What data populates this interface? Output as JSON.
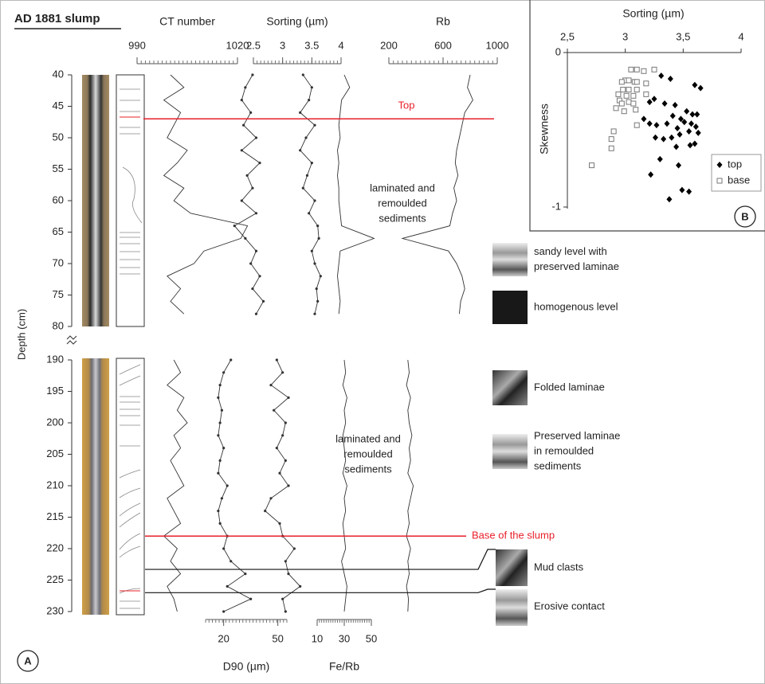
{
  "chart_data": [
    {
      "type": "depth-log",
      "panel": "A",
      "title": "AD 1881 slump",
      "ylabel": "Depth (cm)",
      "color": "#333333",
      "sections": [
        {
          "ylim": [
            40,
            80
          ],
          "yticks": [
            40,
            45,
            50,
            55,
            60,
            65,
            70,
            75,
            80
          ],
          "depth": [
            40,
            42,
            44,
            46,
            48,
            50,
            52,
            54,
            56,
            58,
            60,
            62,
            64,
            66,
            68,
            70,
            72,
            74,
            76,
            78
          ]
        },
        {
          "ylim": [
            190,
            230
          ],
          "yticks": [
            190,
            195,
            200,
            205,
            210,
            215,
            220,
            225,
            230
          ],
          "depth": [
            190,
            192,
            194,
            196,
            198,
            200,
            202,
            204,
            206,
            208,
            210,
            212,
            214,
            216,
            218,
            220,
            222,
            224,
            226,
            228,
            230
          ]
        }
      ],
      "tracks": [
        {
          "name": "CT number",
          "axis": "top",
          "xlim": [
            990,
            1020
          ],
          "xticks": [
            990,
            1020
          ],
          "points": false,
          "values": [
            [
              1000,
              1004,
              998,
              1003,
              1001,
              999,
              1005,
              1002,
              998,
              1004,
              1001,
              1006,
              1023,
              1021,
              1010,
              1007,
              999,
              1003,
              1000,
              1004
            ],
            [
              1001,
              1003,
              999,
              1004,
              1002,
              1005,
              1001,
              1003,
              1000,
              1002,
              1004,
              999,
              1001,
              1003,
              998,
              1002,
              1000,
              1003,
              999,
              1001,
              1002
            ]
          ]
        },
        {
          "name": "Sorting (µm)",
          "axis": "top",
          "xlim": [
            2.5,
            4
          ],
          "xticks": [
            2.5,
            3,
            3.5,
            4
          ],
          "points": true,
          "values": [
            [
              3.35,
              3.5,
              3.45,
              3.3,
              3.55,
              3.4,
              3.3,
              3.5,
              3.42,
              3.35,
              3.55,
              3.45,
              3.6,
              3.62,
              3.5,
              3.55,
              3.65,
              3.58,
              3.6,
              3.55
            ],
            [
              2.9,
              3.0,
              2.8,
              3.1,
              2.85,
              3.05,
              3.0,
              2.9,
              3.05,
              2.95,
              3.1,
              2.8,
              2.7,
              2.95,
              3.0,
              3.2,
              3.05,
              3.1,
              3.3,
              3.0,
              3.05
            ]
          ]
        },
        {
          "name": "Rb",
          "axis": "top",
          "xlim": [
            200,
            1000
          ],
          "xticks": [
            200,
            600,
            1000
          ],
          "points": false,
          "values": [
            [
              800,
              780,
              820,
              760,
              740,
              720,
              700,
              690,
              710,
              680,
              700,
              670,
              650,
              300,
              640,
              700,
              740,
              760,
              730,
              720
            ],
            [
              340,
              350,
              330,
              360,
              340,
              350,
              370,
              350,
              360,
              340,
              380,
              360,
              340,
              350,
              330,
              360,
              340,
              350,
              330,
              345,
              340
            ]
          ]
        },
        {
          "name": "D90 (µm)",
          "axis": "bottom",
          "xlim": [
            10,
            55
          ],
          "xticks": [
            20,
            50
          ],
          "points": true,
          "values": [
            [
              36,
              32,
              30,
              35,
              31,
              38,
              30,
              40,
              33,
              36,
              30,
              38,
              26,
              32,
              38,
              35,
              40,
              36,
              42,
              38
            ],
            [
              24,
              20,
              18,
              17,
              19,
              18,
              17,
              20,
              18,
              17,
              22,
              19,
              17,
              18,
              22,
              20,
              24,
              32,
              22,
              35,
              20
            ]
          ]
        },
        {
          "name": "Fe/Rb",
          "axis": "bottom",
          "xlim": [
            10,
            50
          ],
          "xticks": [
            10,
            30,
            50
          ],
          "points": false,
          "values": [
            [
              30,
              34,
              28,
              27,
              26,
              27,
              25,
              26,
              25,
              26,
              26,
              27,
              28,
              52,
              27,
              26,
              25,
              26,
              27,
              26
            ],
            [
              30,
              31,
              29,
              32,
              30,
              31,
              29,
              30,
              31,
              29,
              32,
              30,
              31,
              29,
              30,
              31,
              28,
              30,
              32,
              31,
              30
            ]
          ]
        }
      ],
      "markers": [
        {
          "label": "Top",
          "depth": 47,
          "color": "#e8202a"
        },
        {
          "label": "Base of the slump",
          "depth": 218,
          "color": "#e8202a"
        }
      ],
      "annotations": [
        [
          "laminated and",
          "remoulded",
          "sediments"
        ],
        [
          "laminated and",
          "remoulded",
          "sediments"
        ]
      ],
      "facies": [
        [
          "sandy level with",
          "preserved laminae"
        ],
        [
          "homogenous level"
        ],
        [
          "Folded laminae"
        ],
        [
          "Preserved laminae",
          "in remoulded",
          "sediments"
        ]
      ],
      "contacts": [
        {
          "label": "Mud clasts",
          "depth": 223.3
        },
        {
          "label": "Erosive contact",
          "depth": 227
        }
      ]
    },
    {
      "type": "scatter",
      "panel": "B",
      "xlabel": "Sorting (µm)",
      "ylabel": "Skewness",
      "xlim": [
        2.5,
        4
      ],
      "xticks": [
        {
          "value": 2.5,
          "label": "2,5"
        },
        3,
        {
          "value": 3.5,
          "label": "3,5"
        },
        4
      ],
      "ylim": [
        -1,
        0
      ],
      "yticks": [
        0,
        -1
      ],
      "legend": "bottom-right",
      "series": [
        {
          "name": "top",
          "marker": "diamond",
          "color": "#000000",
          "x": [
            3.31,
            3.39,
            3.6,
            3.65,
            3.21,
            3.25,
            3.34,
            3.43,
            3.53,
            3.58,
            3.62,
            3.41,
            3.48,
            3.16,
            3.21,
            3.27,
            3.36,
            3.45,
            3.51,
            3.57,
            3.61,
            3.55,
            3.47,
            3.4,
            3.33,
            3.26,
            3.63,
            3.44,
            3.56,
            3.6,
            3.3,
            3.46,
            3.22,
            3.49,
            3.55,
            3.38
          ],
          "y": [
            -0.15,
            -0.17,
            -0.21,
            -0.23,
            -0.32,
            -0.3,
            -0.33,
            -0.34,
            -0.38,
            -0.4,
            -0.4,
            -0.41,
            -0.43,
            -0.43,
            -0.46,
            -0.47,
            -0.46,
            -0.49,
            -0.45,
            -0.46,
            -0.48,
            -0.51,
            -0.53,
            -0.55,
            -0.56,
            -0.55,
            -0.52,
            -0.61,
            -0.6,
            -0.59,
            -0.69,
            -0.73,
            -0.79,
            -0.89,
            -0.9,
            -0.95
          ]
        },
        {
          "name": "base",
          "marker": "square-open",
          "color": "#777777",
          "x": [
            3.05,
            3.1,
            3.16,
            3.18,
            3.0,
            3.03,
            3.08,
            3.1,
            2.97,
            2.98,
            3.03,
            3.1,
            2.94,
            3.01,
            3.07,
            2.95,
            3.03,
            3.07,
            2.97,
            2.92,
            3.09,
            3.1,
            2.9,
            2.88,
            2.88,
            2.71,
            3.25,
            3.18,
            2.99
          ],
          "y": [
            -0.11,
            -0.11,
            -0.12,
            -0.2,
            -0.18,
            -0.18,
            -0.19,
            -0.19,
            -0.19,
            -0.24,
            -0.24,
            -0.24,
            -0.27,
            -0.28,
            -0.28,
            -0.31,
            -0.32,
            -0.33,
            -0.33,
            -0.36,
            -0.37,
            -0.47,
            -0.51,
            -0.56,
            -0.62,
            -0.73,
            -0.11,
            -0.27,
            -0.38
          ]
        }
      ]
    }
  ]
}
